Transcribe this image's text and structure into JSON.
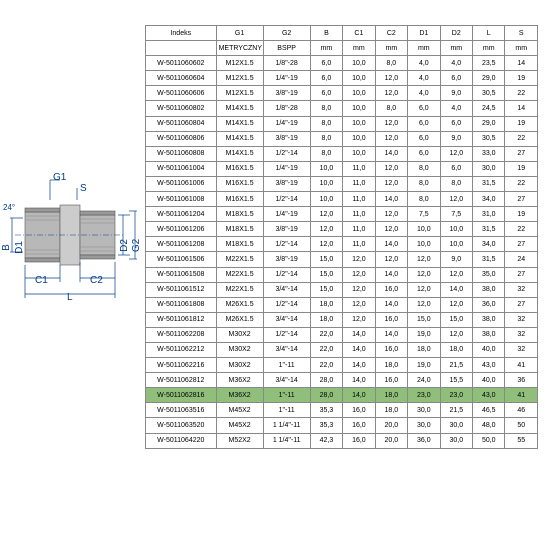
{
  "diagram": {
    "labels": {
      "g1": "G1",
      "s": "S",
      "angle": "24°",
      "b": "B",
      "d1": "D1",
      "d2": "D2",
      "g2": "G2",
      "c1": "C1",
      "c2": "C2",
      "l": "L"
    },
    "line_color": "#003c8c",
    "part_fill": "#b8b8b8",
    "part_stroke": "#555"
  },
  "table": {
    "headers": [
      "Indeks",
      "G1",
      "G2",
      "B",
      "C1",
      "C2",
      "D1",
      "D2",
      "L",
      "S"
    ],
    "subheaders": [
      "",
      "METRYCZNY",
      "BSPP",
      "mm",
      "mm",
      "mm",
      "mm",
      "mm",
      "mm",
      "mm"
    ],
    "highlight_index": 22,
    "highlight_color": "#8fbf7a",
    "border_color": "#888",
    "font_size": 7,
    "rows": [
      [
        "W-5011060602",
        "M12X1.5",
        "1/8\"-28",
        "6,0",
        "10,0",
        "8,0",
        "4,0",
        "4,0",
        "23,5",
        "14"
      ],
      [
        "W-5011060604",
        "M12X1.5",
        "1/4\"-19",
        "6,0",
        "10,0",
        "12,0",
        "4,0",
        "6,0",
        "29,0",
        "19"
      ],
      [
        "W-5011060606",
        "M12X1.5",
        "3/8\"-19",
        "6,0",
        "10,0",
        "12,0",
        "4,0",
        "9,0",
        "30,5",
        "22"
      ],
      [
        "W-5011060802",
        "M14X1.5",
        "1/8\"-28",
        "8,0",
        "10,0",
        "8,0",
        "6,0",
        "4,0",
        "24,5",
        "14"
      ],
      [
        "W-5011060804",
        "M14X1.5",
        "1/4\"-19",
        "8,0",
        "10,0",
        "12,0",
        "6,0",
        "6,0",
        "29,0",
        "19"
      ],
      [
        "W-5011060806",
        "M14X1.5",
        "3/8\"-19",
        "8,0",
        "10,0",
        "12,0",
        "6,0",
        "9,0",
        "30,5",
        "22"
      ],
      [
        "W-5011060808",
        "M14X1.5",
        "1/2\"-14",
        "8,0",
        "10,0",
        "14,0",
        "6,0",
        "12,0",
        "33,0",
        "27"
      ],
      [
        "W-5011061004",
        "M16X1.5",
        "1/4\"-19",
        "10,0",
        "11,0",
        "12,0",
        "8,0",
        "6,0",
        "30,0",
        "19"
      ],
      [
        "W-5011061006",
        "M16X1.5",
        "3/8\"-19",
        "10,0",
        "11,0",
        "12,0",
        "8,0",
        "8,0",
        "31,5",
        "22"
      ],
      [
        "W-5011061008",
        "M16X1.5",
        "1/2\"-14",
        "10,0",
        "11,0",
        "14,0",
        "8,0",
        "12,0",
        "34,0",
        "27"
      ],
      [
        "W-5011061204",
        "M18X1.5",
        "1/4\"-19",
        "12,0",
        "11,0",
        "12,0",
        "7,5",
        "7,5",
        "31,0",
        "19"
      ],
      [
        "W-5011061206",
        "M18X1.5",
        "3/8\"-19",
        "12,0",
        "11,0",
        "12,0",
        "10,0",
        "10,0",
        "31,5",
        "22"
      ],
      [
        "W-5011061208",
        "M18X1.5",
        "1/2\"-14",
        "12,0",
        "11,0",
        "14,0",
        "10,0",
        "10,0",
        "34,0",
        "27"
      ],
      [
        "W-5011061506",
        "M22X1.5",
        "3/8\"-19",
        "15,0",
        "12,0",
        "12,0",
        "12,0",
        "9,0",
        "31,5",
        "24"
      ],
      [
        "W-5011061508",
        "M22X1.5",
        "1/2\"-14",
        "15,0",
        "12,0",
        "14,0",
        "12,0",
        "12,0",
        "35,0",
        "27"
      ],
      [
        "W-5011061512",
        "M22X1.5",
        "3/4\"-14",
        "15,0",
        "12,0",
        "16,0",
        "12,0",
        "14,0",
        "38,0",
        "32"
      ],
      [
        "W-5011061808",
        "M26X1.5",
        "1/2\"-14",
        "18,0",
        "12,0",
        "14,0",
        "12,0",
        "12,0",
        "36,0",
        "27"
      ],
      [
        "W-5011061812",
        "M26X1.5",
        "3/4\"-14",
        "18,0",
        "12,0",
        "16,0",
        "15,0",
        "15,0",
        "38,0",
        "32"
      ],
      [
        "W-5011062208",
        "M30X2",
        "1/2\"-14",
        "22,0",
        "14,0",
        "14,0",
        "19,0",
        "12,0",
        "38,0",
        "32"
      ],
      [
        "W-5011062212",
        "M30X2",
        "3/4\"-14",
        "22,0",
        "14,0",
        "16,0",
        "18,0",
        "18,0",
        "40,0",
        "32"
      ],
      [
        "W-5011062216",
        "M30X2",
        "1\"-11",
        "22,0",
        "14,0",
        "18,0",
        "19,0",
        "21,5",
        "43,0",
        "41"
      ],
      [
        "W-5011062812",
        "M36X2",
        "3/4\"-14",
        "28,0",
        "14,0",
        "16,0",
        "24,0",
        "15,5",
        "40,0",
        "36"
      ],
      [
        "W-5011062816",
        "M36X2",
        "1\"-11",
        "28,0",
        "14,0",
        "18,0",
        "23,0",
        "23,0",
        "43,0",
        "41"
      ],
      [
        "W-5011063516",
        "M45X2",
        "1\"-11",
        "35,3",
        "16,0",
        "18,0",
        "30,0",
        "21,5",
        "46,5",
        "46"
      ],
      [
        "W-5011063520",
        "M45X2",
        "1 1/4\"-11",
        "35,3",
        "16,0",
        "20,0",
        "30,0",
        "30,0",
        "48,0",
        "50"
      ],
      [
        "W-5011064220",
        "M52X2",
        "1 1/4\"-11",
        "42,3",
        "16,0",
        "20,0",
        "36,0",
        "30,0",
        "50,0",
        "55"
      ]
    ]
  }
}
